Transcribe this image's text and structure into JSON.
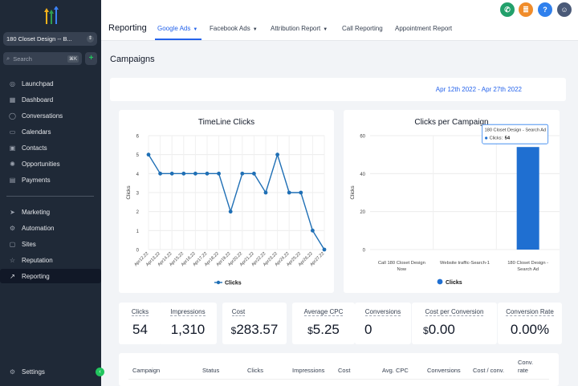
{
  "sidebar": {
    "account": "180 Closet Design -- B...",
    "search_placeholder": "Search",
    "search_shortcut": "⌘K",
    "items": [
      {
        "label": "Launchpad"
      },
      {
        "label": "Dashboard"
      },
      {
        "label": "Conversations"
      },
      {
        "label": "Calendars"
      },
      {
        "label": "Contacts"
      },
      {
        "label": "Opportunities"
      },
      {
        "label": "Payments"
      },
      {
        "label": "Marketing"
      },
      {
        "label": "Automation"
      },
      {
        "label": "Sites"
      },
      {
        "label": "Reputation"
      },
      {
        "label": "Reporting"
      },
      {
        "label": "Settings"
      }
    ]
  },
  "topbar": {
    "title": "Reporting",
    "tabs": [
      {
        "label": "Google Ads"
      },
      {
        "label": "Facebook Ads"
      },
      {
        "label": "Attribution Report"
      },
      {
        "label": "Call Reporting"
      },
      {
        "label": "Appointment Report"
      }
    ],
    "help": "?"
  },
  "main": {
    "title": "Campaigns",
    "date_range": "Apr 12th 2022 - Apr 27th 2022"
  },
  "chart_data": [
    {
      "type": "line",
      "title": "TimeLine Clicks",
      "xlabel": "",
      "ylabel": "Clicks",
      "ylim": [
        0,
        6
      ],
      "yticks": [
        "0",
        "1",
        "2",
        "3",
        "4",
        "5",
        "6"
      ],
      "categories": [
        "Apr12,22",
        "Apr13,22",
        "Apr14,22",
        "Apr15,22",
        "Apr16,22",
        "Apr17,22",
        "Apr18,22",
        "Apr19,22",
        "Apr20,22",
        "Apr21,22",
        "Apr22,22",
        "Apr23,22",
        "Apr24,22",
        "Apr25,22",
        "Apr26,22",
        "Apr27,22"
      ],
      "series": [
        {
          "name": "Clicks",
          "values": [
            5,
            4,
            4,
            4,
            4,
            4,
            4,
            2,
            4,
            4,
            3,
            5,
            3,
            3,
            1,
            0
          ]
        }
      ],
      "legend": "bottom",
      "color": "#1f6fb5"
    },
    {
      "type": "bar",
      "title": "Clicks per Campaign",
      "ylabel": "Clicks",
      "ylim": [
        0,
        60
      ],
      "yticks": [
        "0",
        "20",
        "40",
        "60"
      ],
      "categories": [
        [
          "Call 180 Closet Design",
          "Now"
        ],
        [
          "Website traffic-Search-1"
        ],
        [
          "180 Closet Design -",
          "Search Ad"
        ]
      ],
      "series": [
        {
          "name": "Clicks",
          "values": [
            0,
            0,
            54
          ]
        }
      ],
      "legend": "bottom",
      "color": "#1f6fd1",
      "tooltip": {
        "title": "180 Closet Design - Search Ad",
        "label": "Clicks:",
        "value": "54"
      }
    }
  ],
  "stats": [
    {
      "label": "Clicks",
      "value": "54"
    },
    {
      "label": "Impressions",
      "value": "1,310"
    },
    {
      "label": "Cost",
      "currency": "$",
      "value": "283.57"
    },
    {
      "label": "Average CPC",
      "currency": "$",
      "value": "5.25"
    },
    {
      "label": "Conversions",
      "value": "0"
    },
    {
      "label": "Cost per Conversion",
      "currency": "$",
      "value": "0.00"
    },
    {
      "label": "Conversion Rate",
      "value": "0.00%"
    }
  ],
  "table": {
    "columns": [
      "Campaign",
      "Status",
      "Clicks",
      "Impressions",
      "Cost",
      "Avg. CPC",
      "Conversions",
      "Cost / conv.",
      "Conv.",
      "rate"
    ]
  }
}
